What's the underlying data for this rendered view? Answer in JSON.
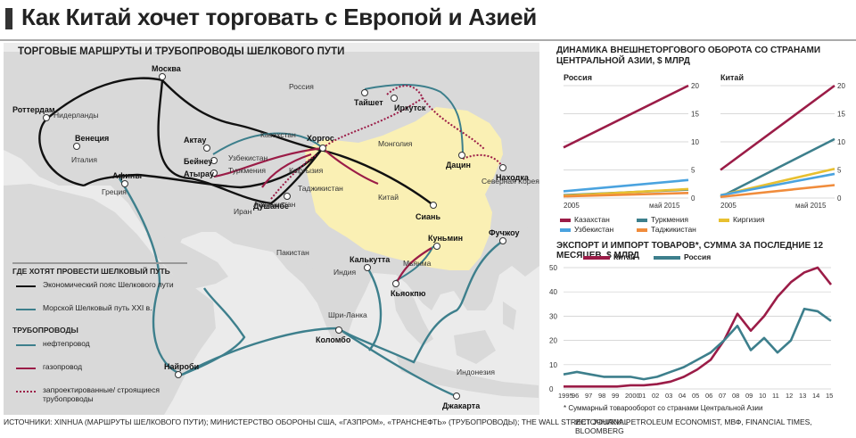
{
  "title": "Как Китай хочет торговать с Европой и Азией",
  "map": {
    "title": "ТОРГОВЫЕ МАРШРУТЫ И ТРУБОПРОВОДЫ ШЕЛКОВОГО ПУТИ",
    "cities": [
      "Москва",
      "Роттердам",
      "Венеция",
      "Афины",
      "Актау",
      "Бейнеу",
      "Атырау",
      "Хоргос",
      "Душанбе",
      "Тайшет",
      "Иркутск",
      "Дацин",
      "Находка",
      "Сиань",
      "Куньмин",
      "Фучжоу",
      "Калькутта",
      "Кьяокпю",
      "Коломбо",
      "Найроби",
      "Джакарта"
    ],
    "countries": [
      "Россия",
      "Нидерланды",
      "Италия",
      "Греция",
      "Казахстан",
      "Узбекистан",
      "Туркмения",
      "Кыргызия",
      "Таджикистан",
      "Афганистан",
      "Иран",
      "Пакистан",
      "Монголия",
      "Китай",
      "Северная Корея",
      "Индия",
      "Мьянма",
      "Шри-Ланка",
      "Индонезия"
    ],
    "legend": {
      "header1": "ГДЕ ХОТЯТ ПРОВЕСТИ ШЕЛКОВЫЙ ПУТЬ",
      "belt": "Экономический пояс Шелкового пути",
      "sea": "Морской Шелковый путь XXI в.",
      "header2": "ТРУБОПРОВОДЫ",
      "oil": "нефтепровод",
      "gas": "газопровод",
      "planned": "запроектированные/ строящиеся трубопроводы"
    },
    "colors": {
      "belt": "#111111",
      "sea": "#3d7f8c",
      "gas": "#9b1c47",
      "china": "#faf0b4",
      "land": "#d9d9d9",
      "sea_bg": "#ebebeb"
    }
  },
  "sources": {
    "left": "ИСТОЧНИКИ: XINHUA (МАРШРУТЫ ШЕЛКОВОГО ПУТИ); МИНИСТЕРСТВО ОБОРОНЫ США, «ГАЗПРОМ», «ТРАНСНЕФТЬ» (ТРУБОПРОВОДЫ); THE WALL STREET JOURNAL",
    "right": "ИСТОЧНИКИ: PETROLEUM ECONOMIST, МВФ, FINANCIAL TIMES, BLOOMBERG"
  },
  "trade": {
    "title": "ДИНАМИКА ВНЕШНЕТОРГОВОГО ОБОРОТА СО СТРАНАМИ ЦЕНТРАЛЬНОЙ АЗИИ, $ МЛРД",
    "legend": [
      "Казахстан",
      "Туркмения",
      "Узбекистан",
      "Таджикистан",
      "Киргизия"
    ],
    "colors": {
      "Казахстан": "#9b1c47",
      "Туркмения": "#3d7f8c",
      "Узбекистан": "#4aa3df",
      "Таджикистан": "#f08c3c",
      "Киргизия": "#e8c030"
    }
  },
  "export": {
    "title": "ЭКСПОРТ И ИМПОРТ ТОВАРОВ*, СУММА ЗА ПОСЛЕДНИЕ 12 МЕСЯЦЕВ, $ МЛРД",
    "footnote": "* Суммарный товарооборот со странами Центральной Азии",
    "legend": [
      "Китай",
      "Россия"
    ]
  },
  "chart_data": [
    {
      "type": "line",
      "title": "Россия",
      "x": [
        "2005",
        "май 2015"
      ],
      "ylim": [
        0,
        20
      ],
      "yticks": [
        0,
        5,
        10,
        15,
        20
      ],
      "xlabels": [
        "2005",
        "май 2015"
      ],
      "series": [
        {
          "name": "Казахстан",
          "values": [
            9,
            20
          ]
        },
        {
          "name": "Узбекистан",
          "values": [
            1.2,
            3.2
          ]
        },
        {
          "name": "Туркмения",
          "values": [
            0.5,
            1.5
          ]
        },
        {
          "name": "Киргизия",
          "values": [
            0.4,
            1.6
          ]
        },
        {
          "name": "Таджикистан",
          "values": [
            0.3,
            0.9
          ]
        }
      ]
    },
    {
      "type": "line",
      "title": "Китай",
      "x": [
        "2005",
        "май 2015"
      ],
      "ylim": [
        0,
        20
      ],
      "yticks": [
        0,
        5,
        10,
        15,
        20
      ],
      "xlabels": [
        "2005",
        "май 2015"
      ],
      "series": [
        {
          "name": "Казахстан",
          "values": [
            5,
            20
          ]
        },
        {
          "name": "Туркмения",
          "values": [
            0.2,
            10.5
          ]
        },
        {
          "name": "Киргизия",
          "values": [
            0.5,
            5.2
          ]
        },
        {
          "name": "Узбекистан",
          "values": [
            0.5,
            4.3
          ]
        },
        {
          "name": "Таджикистан",
          "values": [
            0.2,
            2.3
          ]
        }
      ]
    },
    {
      "type": "line",
      "title": "ЭКСПОРТ И ИМПОРТ ТОВАРОВ*, СУММА ЗА ПОСЛЕДНИЕ 12 МЕСЯЦЕВ, $ МЛРД",
      "x": [
        1995,
        1996,
        1997,
        1998,
        1999,
        2000,
        2001,
        2002,
        2003,
        2004,
        2005,
        2006,
        2007,
        2008,
        2009,
        2010,
        2011,
        2012,
        2013,
        2014,
        2015
      ],
      "xlabels": [
        "1995",
        "96",
        "97",
        "98",
        "99",
        "2000",
        "01",
        "02",
        "03",
        "04",
        "05",
        "06",
        "07",
        "08",
        "09",
        "10",
        "11",
        "12",
        "13",
        "14",
        "15"
      ],
      "ylim": [
        0,
        50
      ],
      "yticks": [
        0,
        10,
        20,
        30,
        40,
        50
      ],
      "series": [
        {
          "name": "Китай",
          "values": [
            1,
            1,
            1,
            1,
            1,
            1.5,
            1.5,
            2,
            3,
            5,
            8,
            12,
            20,
            31,
            24,
            30,
            38,
            44,
            48,
            50,
            43
          ]
        },
        {
          "name": "Россия",
          "values": [
            6,
            7,
            6,
            5,
            5,
            5,
            4,
            5,
            7,
            9,
            12,
            15,
            20,
            26,
            16,
            21,
            15,
            20,
            33,
            32,
            28
          ]
        }
      ]
    }
  ]
}
